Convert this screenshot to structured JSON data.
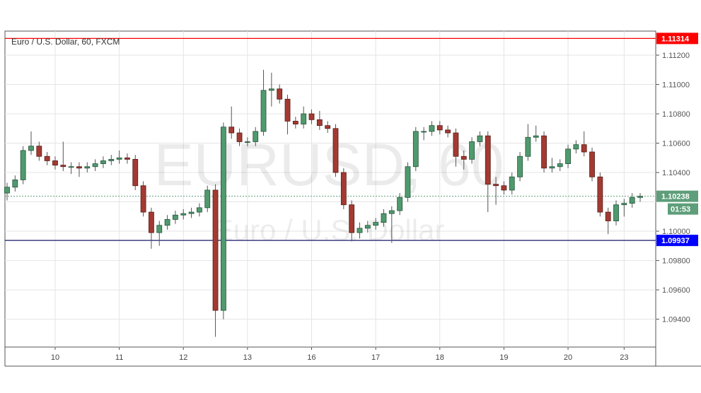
{
  "chart_data": {
    "type": "candlestick",
    "title": "Euro / U.S. Dollar, 60, FXCM",
    "watermark": {
      "symbol": "EURUSD, 60",
      "name": "Euro / U.S. Dollar"
    },
    "ylim": [
      1.0921,
      1.11364
    ],
    "y_ticks": [
      "1.11200",
      "1.11000",
      "1.10800",
      "1.10600",
      "1.10400",
      "1.10000",
      "1.09800",
      "1.09600",
      "1.09400"
    ],
    "y_tick_values": [
      1.112,
      1.11,
      1.108,
      1.106,
      1.104,
      1.1,
      1.098,
      1.096,
      1.094
    ],
    "x_ticks": [
      "10",
      "11",
      "12",
      "13",
      "16",
      "17",
      "18",
      "19",
      "20",
      "23"
    ],
    "x_tick_candle_index": [
      6,
      14,
      22,
      30,
      38,
      46,
      54,
      62,
      70,
      77
    ],
    "grid": true,
    "horizontal_lines": [
      {
        "value": 1.11314,
        "label": "1.11314",
        "color": "#ff0000"
      },
      {
        "value": 1.09937,
        "label": "1.09937",
        "color": "#0000ff",
        "line_color": "#1a1a6e"
      }
    ],
    "last_price": {
      "value": 1.10238,
      "label": "1.10238",
      "countdown": "01:53",
      "color": "#5e9e7a"
    },
    "colors": {
      "up": "#4f9a6e",
      "up_border": "#24553a",
      "down": "#a33a32",
      "down_border": "#5a1c16",
      "wick": "#555555"
    },
    "open": [
      1.1026,
      1.103,
      1.1035,
      1.1055,
      1.1058,
      1.1051,
      1.1048,
      1.1045,
      1.1044,
      1.1044,
      1.1043,
      1.1044,
      1.1046,
      1.1048,
      1.1049,
      1.105,
      1.1049,
      1.1031,
      1.1013,
      1.0999,
      1.1004,
      1.1008,
      1.1011,
      1.1012,
      1.1013,
      1.1016,
      1.1028,
      1.0946,
      1.1071,
      1.1067,
      1.1061,
      1.1061,
      1.1068,
      1.1096,
      1.1097,
      1.109,
      1.1075,
      1.1073,
      1.108,
      1.1076,
      1.1072,
      1.107,
      1.104,
      1.1018,
      1.0999,
      1.1002,
      1.1004,
      1.1006,
      1.1012,
      1.1014,
      1.1023,
      1.1044,
      1.1068,
      1.1068,
      1.1072,
      1.1069,
      1.1067,
      1.1051,
      1.1049,
      1.1061,
      1.1065,
      1.1032,
      1.1031,
      1.1028,
      1.1037,
      1.1051,
      1.1064,
      1.1065,
      1.1043,
      1.1044,
      1.1046,
      1.1056,
      1.1059,
      1.1054,
      1.1037,
      1.1013,
      1.1007,
      1.1018,
      1.1019,
      1.1023
    ],
    "high": [
      1.1033,
      1.1038,
      1.1058,
      1.1068,
      1.1061,
      1.1054,
      1.1051,
      1.1061,
      1.1047,
      1.1047,
      1.1047,
      1.1049,
      1.1051,
      1.1052,
      1.1055,
      1.1053,
      1.1052,
      1.1034,
      1.1016,
      1.1007,
      1.1011,
      1.1014,
      1.1015,
      1.1016,
      1.1019,
      1.1031,
      1.1032,
      1.1074,
      1.1085,
      1.107,
      1.1064,
      1.1071,
      1.111,
      1.1108,
      1.11,
      1.1093,
      1.1078,
      1.1085,
      1.1083,
      1.1082,
      1.1075,
      1.1073,
      1.1043,
      1.1021,
      1.1006,
      1.1007,
      1.1009,
      1.1015,
      1.1017,
      1.1026,
      1.1047,
      1.1071,
      1.1071,
      1.1075,
      1.1075,
      1.1072,
      1.107,
      1.1055,
      1.1064,
      1.1068,
      1.1068,
      1.1037,
      1.1034,
      1.104,
      1.1054,
      1.1073,
      1.1072,
      1.1068,
      1.105,
      1.1049,
      1.1059,
      1.1062,
      1.1068,
      1.1057,
      1.104,
      1.1016,
      1.1021,
      1.1022,
      1.1026,
      1.1026
    ],
    "low": [
      1.1021,
      1.1027,
      1.1032,
      1.1052,
      1.1048,
      1.1045,
      1.1042,
      1.1041,
      1.1039,
      1.1037,
      1.104,
      1.1041,
      1.1043,
      1.1045,
      1.1046,
      1.1046,
      1.1028,
      1.101,
      1.0988,
      1.099,
      1.1001,
      1.1005,
      1.1008,
      1.1009,
      1.101,
      1.1013,
      1.0928,
      1.094,
      1.1063,
      1.1058,
      1.1058,
      1.1058,
      1.1065,
      1.1085,
      1.1087,
      1.1066,
      1.107,
      1.107,
      1.1073,
      1.1069,
      1.1067,
      1.1037,
      1.1015,
      1.0993,
      1.0995,
      1.0999,
      1.1001,
      1.1003,
      1.0992,
      1.1011,
      1.102,
      1.1041,
      1.1062,
      1.1065,
      1.1066,
      1.1064,
      1.1044,
      1.1042,
      1.1046,
      1.1058,
      1.1013,
      1.1018,
      1.1025,
      1.1025,
      1.1034,
      1.1048,
      1.1061,
      1.104,
      1.104,
      1.1041,
      1.1043,
      1.1053,
      1.1051,
      1.1034,
      1.101,
      1.0998,
      1.1004,
      1.101,
      1.1016,
      1.102
    ],
    "close": [
      1.103,
      1.1035,
      1.1055,
      1.1058,
      1.1051,
      1.1048,
      1.1045,
      1.1044,
      1.1044,
      1.1043,
      1.1044,
      1.1046,
      1.1048,
      1.1049,
      1.105,
      1.1049,
      1.1031,
      1.1013,
      1.0999,
      1.1004,
      1.1008,
      1.1011,
      1.1012,
      1.1013,
      1.1016,
      1.1028,
      1.0946,
      1.1071,
      1.1067,
      1.1061,
      1.1061,
      1.1068,
      1.1096,
      1.1097,
      1.109,
      1.1075,
      1.1073,
      1.108,
      1.1076,
      1.1072,
      1.107,
      1.104,
      1.1018,
      1.0999,
      1.1002,
      1.1004,
      1.1006,
      1.1012,
      1.1014,
      1.1023,
      1.1044,
      1.1068,
      1.1068,
      1.1072,
      1.1069,
      1.1067,
      1.1051,
      1.1049,
      1.1061,
      1.1065,
      1.1032,
      1.1031,
      1.1028,
      1.1037,
      1.1051,
      1.1064,
      1.1065,
      1.1043,
      1.1044,
      1.1046,
      1.1056,
      1.1059,
      1.1054,
      1.1037,
      1.1013,
      1.1007,
      1.1018,
      1.1019,
      1.1023,
      1.10238
    ]
  }
}
